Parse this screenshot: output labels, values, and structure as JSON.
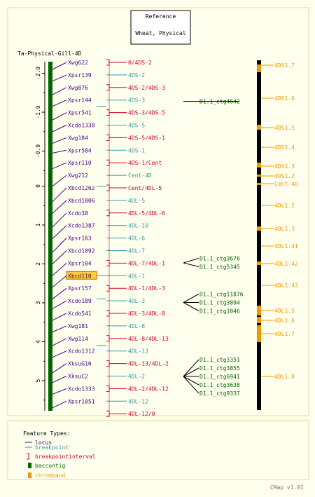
{
  "header": {
    "line1": "Reference",
    "line2": "Wheat, Physical"
  },
  "map_name": "Ta-Physical-Gill-4D",
  "scale": {
    "ticks": [
      {
        "label": "-2.9",
        "v": -2.9
      },
      {
        "label": "-1.9",
        "v": -1.9
      },
      {
        "label": "-0.9",
        "v": -0.9
      },
      {
        "label": "0",
        "v": 0
      },
      {
        "label": "1",
        "v": 1
      },
      {
        "label": "2",
        "v": 2
      },
      {
        "label": "3",
        "v": 3
      },
      {
        "label": "4",
        "v": 4
      },
      {
        "label": "5",
        "v": 5
      }
    ],
    "minor_ticks": [
      -2.4,
      -1.4,
      -0.4,
      0.5,
      1.5,
      2.5,
      3.5,
      4.5,
      5.5
    ]
  },
  "loci": [
    {
      "label": "Xwg622",
      "v": -3.0
    },
    {
      "label": "Xpsr139",
      "v": -2.7
    },
    {
      "label": "Xwg876",
      "v": -2.35
    },
    {
      "label": "Xpsr144",
      "v": -2.05
    },
    {
      "label": "Xpsr541",
      "v": -1.7
    },
    {
      "label": "Xcdo1338",
      "v": -1.4
    },
    {
      "label": "Xwg184",
      "v": -1.1
    },
    {
      "label": "Xpsr584",
      "v": -0.85
    },
    {
      "label": "Xpsr110",
      "v": -0.45
    },
    {
      "label": "Xwg212",
      "v": 0.0
    },
    {
      "label": "Xbcd1262",
      "v": 0.4
    },
    {
      "label": "Xbcd1006",
      "v": 0.7
    },
    {
      "label": "Xcdo38",
      "v": 1.05
    },
    {
      "label": "Xcdo1387",
      "v": 1.35
    },
    {
      "label": "Xpsr163",
      "v": 1.7
    },
    {
      "label": "Xbcd1092",
      "v": 2.0
    },
    {
      "label": "Xpsr104",
      "v": 2.3
    },
    {
      "label": "Xbcd110",
      "v": 2.6
    },
    {
      "label": "Xpsr157",
      "v": 2.9
    },
    {
      "label": "Xcdo189",
      "v": 3.15
    },
    {
      "label": "Xcdo541",
      "v": 3.45
    },
    {
      "label": "Xwg181",
      "v": 3.75
    },
    {
      "label": "Xwg114",
      "v": 4.1
    },
    {
      "label": "Xcdo1312",
      "v": 4.4
    },
    {
      "label": "XksuG10",
      "v": 4.8
    },
    {
      "label": "XksuC2",
      "v": 5.05
    },
    {
      "label": "Xcdo1333",
      "v": 5.35
    },
    {
      "label": "Xpsr1051",
      "v": 5.7
    }
  ],
  "highlighted_locus": "Xbcd110",
  "features": [
    {
      "label": "0/4DS-2",
      "kind": "bpi"
    },
    {
      "label": "4DS-2",
      "kind": "bp"
    },
    {
      "label": "4DS-2/4DS-3",
      "kind": "bpi"
    },
    {
      "label": "4DS-3",
      "kind": "bp"
    },
    {
      "label": "4DS-3/4DS-5",
      "kind": "bpi"
    },
    {
      "label": "4DS-5",
      "kind": "bp"
    },
    {
      "label": "4DS-5/4DS-1",
      "kind": "bpi"
    },
    {
      "label": "4DS-1",
      "kind": "bp"
    },
    {
      "label": "4DS-1/Cent",
      "kind": "bpi"
    },
    {
      "label": "Cent-4D",
      "kind": "bp"
    },
    {
      "label": "Cent/4DL-5",
      "kind": "bpi"
    },
    {
      "label": "4DL-5",
      "kind": "bp"
    },
    {
      "label": "4DL-5/4DL-6",
      "kind": "bpi"
    },
    {
      "label": "4DL-10",
      "kind": "bp"
    },
    {
      "label": "4DL-6",
      "kind": "bp"
    },
    {
      "label": "4DL-7",
      "kind": "bp"
    },
    {
      "label": "4DL-7/4DL-1",
      "kind": "bpi"
    },
    {
      "label": "4DL-1",
      "kind": "bp"
    },
    {
      "label": "4DL-1/4DL-3",
      "kind": "bpi"
    },
    {
      "label": "4DL-3",
      "kind": "bp"
    },
    {
      "label": "4DL-3/4DL-8",
      "kind": "bpi"
    },
    {
      "label": "4DL-8",
      "kind": "bp"
    },
    {
      "label": "4DL-8/4DL-13",
      "kind": "bpi"
    },
    {
      "label": "4DL-13",
      "kind": "bp"
    },
    {
      "label": "4DL-13/4DL-2",
      "kind": "bpi"
    },
    {
      "label": "4DL-2",
      "kind": "bp"
    },
    {
      "label": "4DL-2/4DL-12",
      "kind": "bpi"
    },
    {
      "label": "4DL-12",
      "kind": "bp"
    },
    {
      "label": "4DL-12/0",
      "kind": "bpi"
    }
  ],
  "contig_groups": [
    {
      "items": [
        "D1.1_ctg4642"
      ]
    },
    {
      "items": [
        "D1.1_ctg3676",
        "D1.1_ctg5345"
      ]
    },
    {
      "items": [
        "D1.1_ctg11876",
        "D1.1_ctg3894",
        "D1.1_ctg1046"
      ]
    },
    {
      "items": [
        "D1.1_ctg3351",
        "D1.1_ctg3855",
        "D1.1_ctg6941",
        "D1.1_ctg3638",
        "D1.1_ctg9337"
      ]
    }
  ],
  "chrom_bands": [
    {
      "label": "4DS1.7"
    },
    {
      "label": "4DS1.6"
    },
    {
      "label": "4DS1.5"
    },
    {
      "label": "4DS1.4"
    },
    {
      "label": "4DS1.3"
    },
    {
      "label": "4DS1.2"
    },
    {
      "label": "Cent-4D"
    },
    {
      "label": "4DL1.2"
    },
    {
      "label": "4DL1.3"
    },
    {
      "label": "4DL1.41"
    },
    {
      "label": "4DL1.42"
    },
    {
      "label": "4DL1.43"
    },
    {
      "label": "4DL1.5"
    },
    {
      "label": "4DL1.6"
    },
    {
      "label": "4DL1.7"
    },
    {
      "label": "4DL1.8"
    }
  ],
  "legend": {
    "title": "Feature Types:",
    "items": [
      {
        "label": "locus",
        "kind": "locus"
      },
      {
        "label": "breakpoint",
        "kind": "breakpoint"
      },
      {
        "label": "breakpointinterval",
        "kind": "breakpointinterval"
      },
      {
        "label": "baccontig",
        "kind": "baccontig"
      },
      {
        "label": "chromband",
        "kind": "chromband"
      }
    ]
  },
  "footer": "CMap v1.01",
  "colors": {
    "locus": "#440088",
    "breakpoint": "#3399aa",
    "breakpointinterval": "#cc0033",
    "baccontig": "#006600",
    "chromband": "#ee9900",
    "background": "#ffffee",
    "panel_border": "#dddd99",
    "highlight": "#ffcc33"
  }
}
